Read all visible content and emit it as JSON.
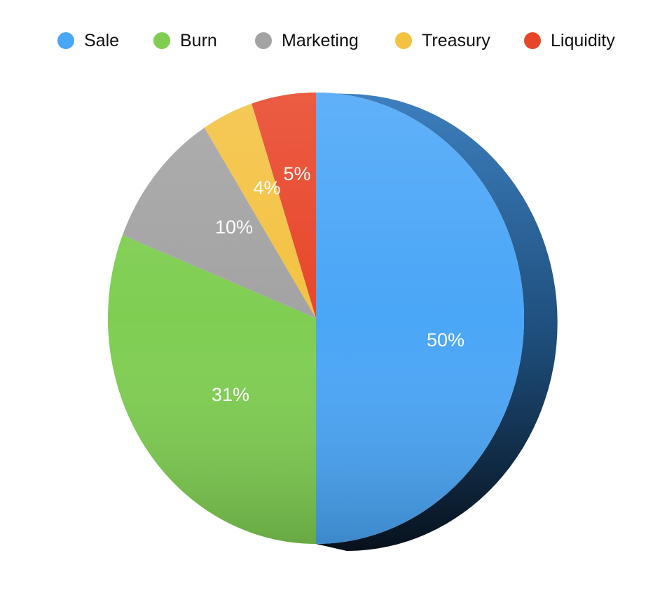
{
  "chart_data": {
    "type": "pie",
    "style": "3d",
    "legend_position": "top",
    "categories": [
      "Sale",
      "Burn",
      "Marketing",
      "Treasury",
      "Liquidity"
    ],
    "values": [
      50,
      31,
      10,
      4,
      5
    ],
    "value_labels": [
      "50%",
      "31%",
      "10%",
      "4%",
      "5%"
    ],
    "colors": [
      "#4aa6f7",
      "#7fce52",
      "#a3a3a3",
      "#f4c242",
      "#e8462a"
    ]
  }
}
